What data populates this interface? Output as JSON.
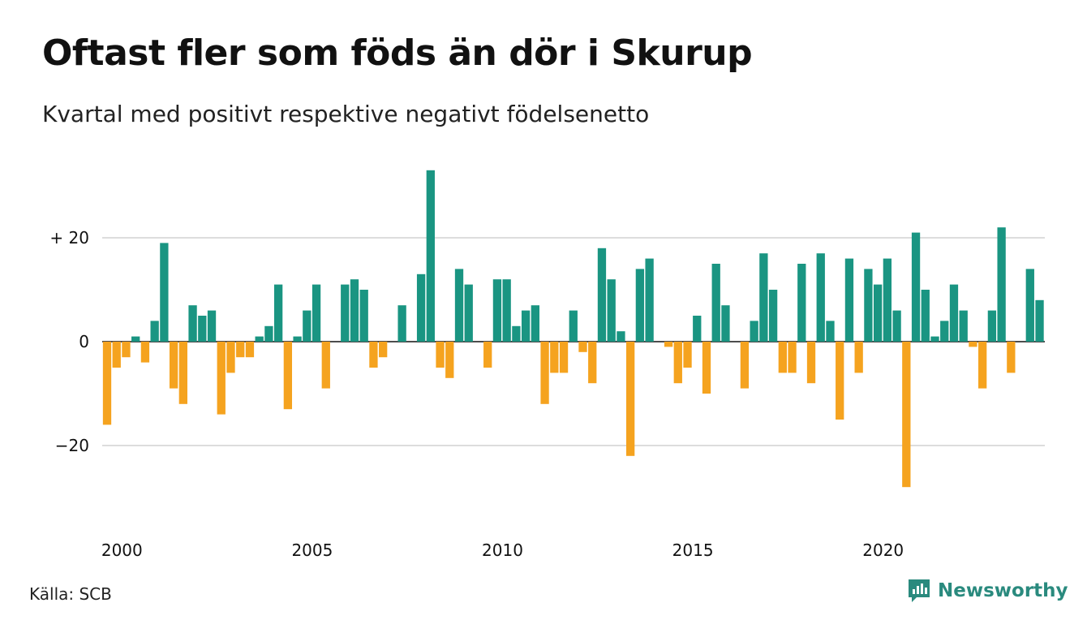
{
  "header": {
    "title": "Oftast fler som föds än dör i Skurup",
    "subtitle": "Kvartal med positivt respektive negativt födelsenetto"
  },
  "footer": {
    "source": "Källa: SCB",
    "brand": "Newsworthy"
  },
  "colors": {
    "positive": "#1a9582",
    "negative": "#f5a31f",
    "grid": "#dddddd",
    "brand": "#2a8a7e"
  },
  "icons": {
    "brand_logo": "newsworthy-logo-icon"
  },
  "chart_data": {
    "type": "bar",
    "title": "Oftast fler som föds än dör i Skurup",
    "subtitle": "Kvartal med positivt respektive negativt födelsenetto",
    "xlabel": "",
    "ylabel": "",
    "start_quarter": "2000 Q1",
    "x_ticks": [
      "2000",
      "2005",
      "2010",
      "2015",
      "2020"
    ],
    "y_ticks": [
      {
        "value": 20,
        "label": "+ 20"
      },
      {
        "value": 0,
        "label": "0"
      },
      {
        "value": -20,
        "label": "−20"
      }
    ],
    "ylim": [
      -30,
      33
    ],
    "grid": true,
    "values": [
      -16,
      -5,
      -3,
      1,
      -4,
      4,
      19,
      -9,
      -12,
      7,
      5,
      6,
      -14,
      -6,
      -3,
      -3,
      1,
      3,
      11,
      -13,
      1,
      6,
      11,
      -9,
      0,
      11,
      12,
      10,
      -5,
      -3,
      0,
      7,
      0,
      13,
      33,
      -5,
      -7,
      14,
      11,
      0,
      -5,
      12,
      12,
      3,
      6,
      7,
      -12,
      -6,
      -6,
      6,
      -2,
      -8,
      18,
      12,
      2,
      -22,
      14,
      16,
      0,
      -1,
      -8,
      -5,
      5,
      -10,
      15,
      7,
      0,
      -9,
      4,
      17,
      10,
      -6,
      -6,
      15,
      -8,
      17,
      4,
      -15,
      16,
      -6,
      14,
      11,
      16,
      6,
      -28,
      21,
      10,
      1,
      4,
      11,
      6,
      -1,
      -9,
      6,
      22,
      -6,
      0,
      14,
      8
    ]
  }
}
